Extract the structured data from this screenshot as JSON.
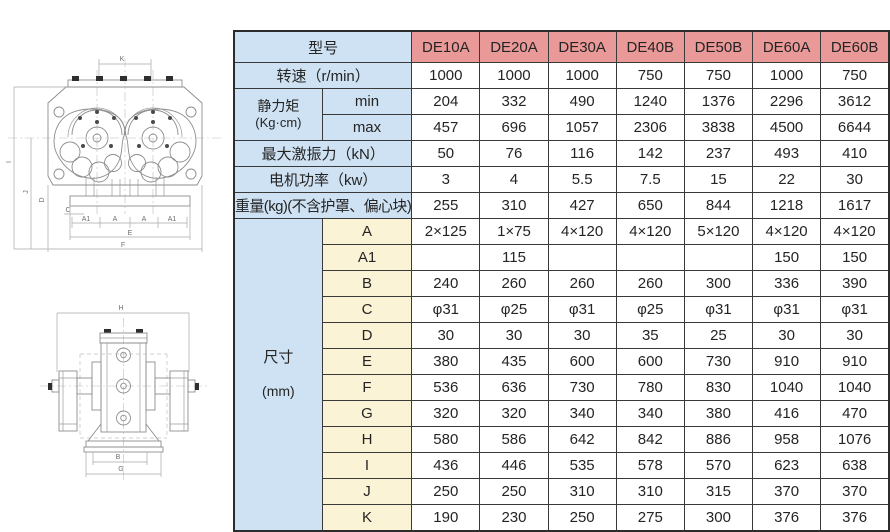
{
  "colors": {
    "header_bg": "#ea9999",
    "label_bg": "#cfe2f3",
    "dimension_letter_bg": "#fbf3d5",
    "cell_bg": "#ffffff",
    "border": "#2c2c2c",
    "text": "#242424"
  },
  "table": {
    "header": {
      "label": "型号",
      "models": [
        "DE10A",
        "DE20A",
        "DE30A",
        "DE40B",
        "DE50B",
        "DE60A",
        "DE60B"
      ]
    },
    "rows": [
      {
        "kind": "spec",
        "label": "转速（r/min）",
        "values": [
          "1000",
          "1000",
          "1000",
          "750",
          "750",
          "1000",
          "750"
        ]
      },
      {
        "kind": "group",
        "label_lines": [
          "静力矩",
          "(Kg·cm)"
        ],
        "children": [
          {
            "label": "min",
            "values": [
              "204",
              "332",
              "490",
              "1240",
              "1376",
              "2296",
              "3612"
            ]
          },
          {
            "label": "max",
            "values": [
              "457",
              "696",
              "1057",
              "2306",
              "3838",
              "4500",
              "6644"
            ]
          }
        ]
      },
      {
        "kind": "spec",
        "label": "最大激振力（kN）",
        "values": [
          "50",
          "76",
          "116",
          "142",
          "237",
          "493",
          "410"
        ]
      },
      {
        "kind": "spec",
        "label": "电机功率（kw）",
        "values": [
          "3",
          "4",
          "5.5",
          "7.5",
          "15",
          "22",
          "30"
        ]
      },
      {
        "kind": "spec",
        "label": "重量(kg)(不含护罩、偏心块)",
        "values": [
          "255",
          "310",
          "427",
          "650",
          "844",
          "1218",
          "1617"
        ]
      },
      {
        "kind": "group",
        "label_lines": [
          "尺寸",
          "(mm)"
        ],
        "children": [
          {
            "label": "A",
            "values": [
              "2×125",
              "1×75",
              "4×120",
              "4×120",
              "5×120",
              "4×120",
              "4×120"
            ]
          },
          {
            "label": "A1",
            "values": [
              "",
              "115",
              "",
              "",
              "",
              "150",
              "150"
            ]
          },
          {
            "label": "B",
            "values": [
              "240",
              "260",
              "260",
              "260",
              "300",
              "336",
              "390"
            ]
          },
          {
            "label": "C",
            "values": [
              "φ31",
              "φ25",
              "φ31",
              "φ25",
              "φ31",
              "φ31",
              "φ31"
            ]
          },
          {
            "label": "D",
            "values": [
              "30",
              "30",
              "30",
              "35",
              "25",
              "30",
              "30"
            ]
          },
          {
            "label": "E",
            "values": [
              "380",
              "435",
              "600",
              "600",
              "730",
              "910",
              "910"
            ]
          },
          {
            "label": "F",
            "values": [
              "536",
              "636",
              "730",
              "780",
              "830",
              "1040",
              "1040"
            ]
          },
          {
            "label": "G",
            "values": [
              "320",
              "320",
              "340",
              "340",
              "380",
              "416",
              "470"
            ]
          },
          {
            "label": "H",
            "values": [
              "580",
              "586",
              "642",
              "842",
              "886",
              "958",
              "1076"
            ]
          },
          {
            "label": "I",
            "values": [
              "436",
              "446",
              "535",
              "578",
              "570",
              "623",
              "638"
            ]
          },
          {
            "label": "J",
            "values": [
              "250",
              "250",
              "310",
              "310",
              "315",
              "370",
              "370"
            ]
          },
          {
            "label": "K",
            "values": [
              "190",
              "230",
              "250",
              "275",
              "300",
              "376",
              "376"
            ]
          }
        ]
      }
    ]
  },
  "drawing": {
    "top_view": {
      "dim_labels": {
        "K": "K",
        "A1_left": "A1",
        "A_left": "A",
        "A_right": "A",
        "A1_right": "A1",
        "C": "C",
        "D": "D",
        "E": "E",
        "F": "F",
        "I": "I",
        "J": "J"
      }
    },
    "side_view": {
      "dim_labels": {
        "H": "H",
        "B": "B",
        "G": "G"
      }
    }
  }
}
